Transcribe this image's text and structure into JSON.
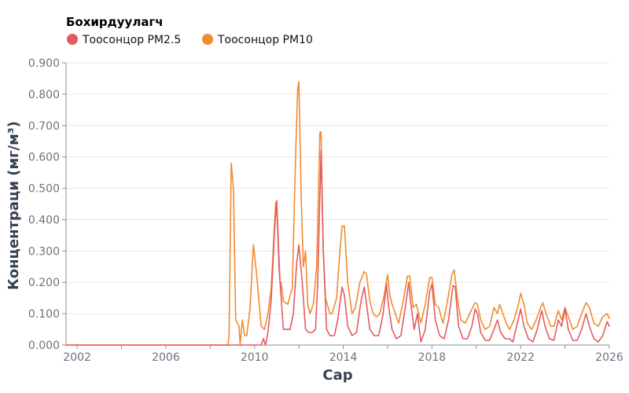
{
  "chart_data": {
    "type": "line",
    "xlabel": "Сар",
    "ylabel": "Концентраци (мг/м³)",
    "legend": {
      "title": "Бохирдуулагч",
      "placement": "top-left"
    },
    "xlim": [
      2001.5,
      2026
    ],
    "ylim": [
      0,
      0.9
    ],
    "x_ticks": [
      2002,
      2006,
      2010,
      2014,
      2018,
      2022,
      2026
    ],
    "x_tick_labels": [
      "2002",
      "2006",
      "2010",
      "2014",
      "2018",
      "2022",
      "2026"
    ],
    "y_ticks": [
      0,
      0.1,
      0.2,
      0.3,
      0.4,
      0.5,
      0.6,
      0.7,
      0.8,
      0.9
    ],
    "y_tick_labels": [
      "0.000",
      "0.100",
      "0.200",
      "0.300",
      "0.400",
      "0.500",
      "0.600",
      "0.700",
      "0.800",
      "0.900"
    ],
    "grid": true,
    "series": [
      {
        "name": "Тоосонцор PM10",
        "color": "#f28b30",
        "points": [
          [
            2001.5,
            0.0
          ],
          [
            2008.8,
            0.0
          ],
          [
            2008.85,
            0.03
          ],
          [
            2008.95,
            0.58
          ],
          [
            2009.05,
            0.5
          ],
          [
            2009.15,
            0.08
          ],
          [
            2009.3,
            0.06
          ],
          [
            2009.35,
            0.0
          ],
          [
            2009.45,
            0.08
          ],
          [
            2009.55,
            0.03
          ],
          [
            2009.65,
            0.03
          ],
          [
            2009.8,
            0.12
          ],
          [
            2009.95,
            0.32
          ],
          [
            2010.1,
            0.22
          ],
          [
            2010.3,
            0.06
          ],
          [
            2010.45,
            0.05
          ],
          [
            2010.6,
            0.1
          ],
          [
            2010.75,
            0.18
          ],
          [
            2010.95,
            0.45
          ],
          [
            2011.0,
            0.46
          ],
          [
            2011.15,
            0.2
          ],
          [
            2011.2,
            0.2
          ],
          [
            2011.3,
            0.14
          ],
          [
            2011.5,
            0.13
          ],
          [
            2011.7,
            0.18
          ],
          [
            2011.85,
            0.6
          ],
          [
            2011.95,
            0.82
          ],
          [
            2012.0,
            0.84
          ],
          [
            2012.1,
            0.48
          ],
          [
            2012.2,
            0.25
          ],
          [
            2012.3,
            0.3
          ],
          [
            2012.4,
            0.13
          ],
          [
            2012.5,
            0.1
          ],
          [
            2012.65,
            0.13
          ],
          [
            2012.8,
            0.25
          ],
          [
            2012.95,
            0.68
          ],
          [
            2013.0,
            0.68
          ],
          [
            2013.1,
            0.3
          ],
          [
            2013.2,
            0.15
          ],
          [
            2013.4,
            0.1
          ],
          [
            2013.5,
            0.1
          ],
          [
            2013.7,
            0.15
          ],
          [
            2013.85,
            0.3
          ],
          [
            2013.95,
            0.38
          ],
          [
            2014.05,
            0.38
          ],
          [
            2014.2,
            0.2
          ],
          [
            2014.4,
            0.1
          ],
          [
            2014.55,
            0.12
          ],
          [
            2014.75,
            0.2
          ],
          [
            2014.95,
            0.235
          ],
          [
            2015.05,
            0.225
          ],
          [
            2015.2,
            0.14
          ],
          [
            2015.35,
            0.1
          ],
          [
            2015.5,
            0.09
          ],
          [
            2015.65,
            0.1
          ],
          [
            2015.85,
            0.16
          ],
          [
            2016.0,
            0.225
          ],
          [
            2016.1,
            0.16
          ],
          [
            2016.2,
            0.13
          ],
          [
            2016.35,
            0.1
          ],
          [
            2016.5,
            0.07
          ],
          [
            2016.7,
            0.14
          ],
          [
            2016.9,
            0.22
          ],
          [
            2017.0,
            0.22
          ],
          [
            2017.15,
            0.12
          ],
          [
            2017.3,
            0.13
          ],
          [
            2017.5,
            0.07
          ],
          [
            2017.7,
            0.13
          ],
          [
            2017.9,
            0.215
          ],
          [
            2018.0,
            0.215
          ],
          [
            2018.15,
            0.13
          ],
          [
            2018.3,
            0.12
          ],
          [
            2018.5,
            0.07
          ],
          [
            2018.7,
            0.14
          ],
          [
            2018.9,
            0.225
          ],
          [
            2019.0,
            0.24
          ],
          [
            2019.15,
            0.15
          ],
          [
            2019.3,
            0.08
          ],
          [
            2019.5,
            0.07
          ],
          [
            2019.7,
            0.1
          ],
          [
            2019.95,
            0.135
          ],
          [
            2020.05,
            0.13
          ],
          [
            2020.2,
            0.08
          ],
          [
            2020.4,
            0.05
          ],
          [
            2020.6,
            0.06
          ],
          [
            2020.8,
            0.12
          ],
          [
            2020.95,
            0.1
          ],
          [
            2021.05,
            0.13
          ],
          [
            2021.2,
            0.1
          ],
          [
            2021.35,
            0.07
          ],
          [
            2021.5,
            0.05
          ],
          [
            2021.7,
            0.08
          ],
          [
            2021.9,
            0.13
          ],
          [
            2022.0,
            0.165
          ],
          [
            2022.15,
            0.13
          ],
          [
            2022.3,
            0.07
          ],
          [
            2022.5,
            0.05
          ],
          [
            2022.7,
            0.08
          ],
          [
            2022.9,
            0.12
          ],
          [
            2023.0,
            0.135
          ],
          [
            2023.15,
            0.1
          ],
          [
            2023.35,
            0.06
          ],
          [
            2023.5,
            0.06
          ],
          [
            2023.7,
            0.11
          ],
          [
            2023.85,
            0.08
          ],
          [
            2024.0,
            0.12
          ],
          [
            2024.15,
            0.09
          ],
          [
            2024.35,
            0.05
          ],
          [
            2024.55,
            0.06
          ],
          [
            2024.75,
            0.1
          ],
          [
            2024.95,
            0.135
          ],
          [
            2025.1,
            0.12
          ],
          [
            2025.3,
            0.07
          ],
          [
            2025.5,
            0.06
          ],
          [
            2025.7,
            0.09
          ],
          [
            2025.9,
            0.1
          ],
          [
            2026.0,
            0.085
          ]
        ]
      },
      {
        "name": "Тоосонцор PM2.5",
        "color": "#e35b61",
        "points": [
          [
            2001.5,
            0.0
          ],
          [
            2010.3,
            0.0
          ],
          [
            2010.4,
            0.02
          ],
          [
            2010.5,
            0.0
          ],
          [
            2010.6,
            0.04
          ],
          [
            2010.75,
            0.14
          ],
          [
            2010.9,
            0.36
          ],
          [
            2011.0,
            0.46
          ],
          [
            2011.1,
            0.25
          ],
          [
            2011.3,
            0.05
          ],
          [
            2011.45,
            0.05
          ],
          [
            2011.6,
            0.05
          ],
          [
            2011.75,
            0.1
          ],
          [
            2011.9,
            0.26
          ],
          [
            2012.0,
            0.32
          ],
          [
            2012.15,
            0.2
          ],
          [
            2012.3,
            0.05
          ],
          [
            2012.45,
            0.04
          ],
          [
            2012.6,
            0.04
          ],
          [
            2012.75,
            0.05
          ],
          [
            2012.85,
            0.2
          ],
          [
            2013.0,
            0.62
          ],
          [
            2013.1,
            0.3
          ],
          [
            2013.25,
            0.05
          ],
          [
            2013.4,
            0.03
          ],
          [
            2013.6,
            0.03
          ],
          [
            2013.75,
            0.08
          ],
          [
            2013.95,
            0.185
          ],
          [
            2014.05,
            0.16
          ],
          [
            2014.2,
            0.06
          ],
          [
            2014.4,
            0.03
          ],
          [
            2014.6,
            0.04
          ],
          [
            2014.8,
            0.14
          ],
          [
            2014.95,
            0.185
          ],
          [
            2015.05,
            0.13
          ],
          [
            2015.2,
            0.05
          ],
          [
            2015.4,
            0.03
          ],
          [
            2015.6,
            0.03
          ],
          [
            2015.8,
            0.1
          ],
          [
            2015.95,
            0.195
          ],
          [
            2016.05,
            0.12
          ],
          [
            2016.2,
            0.05
          ],
          [
            2016.4,
            0.02
          ],
          [
            2016.6,
            0.03
          ],
          [
            2016.8,
            0.12
          ],
          [
            2016.95,
            0.2
          ],
          [
            2017.05,
            0.13
          ],
          [
            2017.2,
            0.05
          ],
          [
            2017.35,
            0.1
          ],
          [
            2017.5,
            0.01
          ],
          [
            2017.7,
            0.05
          ],
          [
            2017.9,
            0.17
          ],
          [
            2018.0,
            0.195
          ],
          [
            2018.15,
            0.08
          ],
          [
            2018.35,
            0.03
          ],
          [
            2018.55,
            0.02
          ],
          [
            2018.75,
            0.08
          ],
          [
            2018.95,
            0.19
          ],
          [
            2019.05,
            0.185
          ],
          [
            2019.2,
            0.06
          ],
          [
            2019.4,
            0.02
          ],
          [
            2019.6,
            0.02
          ],
          [
            2019.8,
            0.06
          ],
          [
            2019.95,
            0.115
          ],
          [
            2020.05,
            0.1
          ],
          [
            2020.2,
            0.04
          ],
          [
            2020.4,
            0.015
          ],
          [
            2020.6,
            0.015
          ],
          [
            2020.8,
            0.05
          ],
          [
            2020.95,
            0.08
          ],
          [
            2021.1,
            0.04
          ],
          [
            2021.3,
            0.02
          ],
          [
            2021.5,
            0.02
          ],
          [
            2021.65,
            0.01
          ],
          [
            2021.85,
            0.07
          ],
          [
            2022.0,
            0.115
          ],
          [
            2022.15,
            0.06
          ],
          [
            2022.35,
            0.02
          ],
          [
            2022.55,
            0.01
          ],
          [
            2022.75,
            0.05
          ],
          [
            2022.95,
            0.11
          ],
          [
            2023.1,
            0.06
          ],
          [
            2023.3,
            0.02
          ],
          [
            2023.5,
            0.015
          ],
          [
            2023.7,
            0.08
          ],
          [
            2023.85,
            0.06
          ],
          [
            2024.0,
            0.115
          ],
          [
            2024.15,
            0.05
          ],
          [
            2024.35,
            0.015
          ],
          [
            2024.55,
            0.015
          ],
          [
            2024.75,
            0.05
          ],
          [
            2024.95,
            0.1
          ],
          [
            2025.1,
            0.06
          ],
          [
            2025.3,
            0.02
          ],
          [
            2025.5,
            0.01
          ],
          [
            2025.7,
            0.03
          ],
          [
            2025.9,
            0.075
          ],
          [
            2026.0,
            0.06
          ]
        ]
      }
    ],
    "legend_order": [
      "Тоосонцор PM2.5",
      "Тоосонцор PM10"
    ]
  }
}
